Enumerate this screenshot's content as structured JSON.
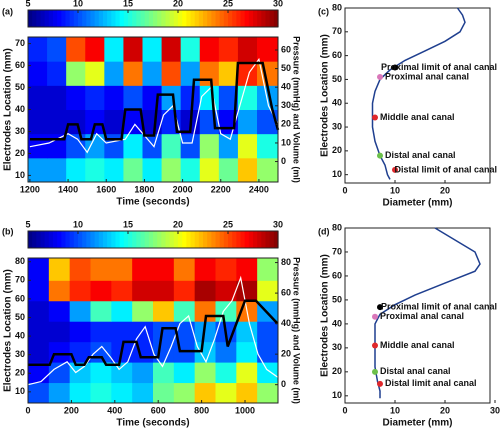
{
  "chart_data": [
    {
      "type": "heatmap",
      "panel_label": "(a)",
      "xlabel": "Time (seconds)",
      "ylabel": "Electrodes Location (mm)",
      "y2label": "Pressure (mmHg) and Volume (ml)",
      "xlim": [
        1190,
        2500
      ],
      "xticks": [
        1200,
        1400,
        1600,
        1800,
        2000,
        2200,
        2400
      ],
      "ylim": [
        7,
        73
      ],
      "yticks": [
        10,
        20,
        30,
        40,
        50,
        60,
        70
      ],
      "y2lim": [
        -11,
        67
      ],
      "y2ticks": [
        0,
        10,
        20,
        30,
        40,
        50,
        60
      ],
      "clim": [
        5,
        30
      ],
      "cticks": [
        5,
        10,
        15,
        20,
        25,
        30
      ],
      "xbins": [
        1190,
        1290,
        1390,
        1490,
        1590,
        1690,
        1790,
        1890,
        1990,
        2090,
        2190,
        2290,
        2390,
        2500
      ],
      "ybins": [
        7,
        18,
        29,
        40,
        51,
        62,
        73
      ],
      "z": [
        [
          12,
          12,
          14,
          15,
          14,
          17,
          14,
          18,
          15,
          20,
          17,
          22,
          18
        ],
        [
          8,
          8,
          10,
          12,
          10,
          14,
          10,
          16,
          10,
          18,
          12,
          20,
          15
        ],
        [
          7,
          7,
          7,
          8,
          7,
          8,
          7,
          9,
          7,
          10,
          8,
          12,
          10
        ],
        [
          7,
          7,
          8,
          9,
          8,
          10,
          8,
          12,
          9,
          14,
          10,
          15,
          12
        ],
        [
          8,
          9,
          18,
          20,
          12,
          24,
          12,
          25,
          12,
          24,
          22,
          26,
          24
        ],
        [
          9,
          10,
          25,
          27,
          14,
          28,
          14,
          28,
          15,
          27,
          26,
          28,
          27
        ]
      ],
      "series": [
        {
          "color": "#ffffff",
          "axis": "y2",
          "x": [
            1200,
            1300,
            1400,
            1450,
            1500,
            1550,
            1600,
            1700,
            1750,
            1800,
            1850,
            1900,
            1950,
            2000,
            2050,
            2100,
            2150,
            2200,
            2250,
            2300,
            2350,
            2400,
            2450,
            2500
          ],
          "values": [
            8,
            10,
            15,
            12,
            5,
            15,
            10,
            12,
            20,
            14,
            8,
            25,
            30,
            10,
            10,
            35,
            40,
            15,
            12,
            30,
            48,
            55,
            30,
            20
          ]
        },
        {
          "color": "#000000",
          "axis": "y2",
          "x": [
            1200,
            1380,
            1400,
            1450,
            1470,
            1520,
            1540,
            1580,
            1600,
            1680,
            1700,
            1780,
            1800,
            1850,
            1870,
            1950,
            1970,
            2040,
            2060,
            2150,
            2170,
            2270,
            2290,
            2420,
            2470,
            2500
          ],
          "values": [
            12,
            12,
            20,
            20,
            12,
            12,
            20,
            20,
            12,
            12,
            28,
            28,
            14,
            14,
            36,
            36,
            16,
            16,
            44,
            44,
            18,
            18,
            53,
            53,
            28,
            17
          ]
        }
      ]
    },
    {
      "type": "heatmap",
      "panel_label": "(b)",
      "xlabel": "Time (seconds)",
      "ylabel": "Electrodes Location (mm)",
      "y2label": "Pressure (mmHg) and Volume (ml)",
      "xlim": [
        0,
        1152
      ],
      "xticks": [
        0,
        200,
        400,
        600,
        800,
        1000
      ],
      "ylim": [
        4,
        82
      ],
      "yticks": [
        10,
        20,
        30,
        40,
        50,
        60,
        70,
        80
      ],
      "y2lim": [
        -12,
        83
      ],
      "y2ticks": [
        0,
        20,
        40,
        60,
        80
      ],
      "clim": [
        5,
        30
      ],
      "cticks": [
        5,
        10,
        15,
        20,
        25,
        30
      ],
      "xbins": [
        0,
        96,
        192,
        288,
        384,
        480,
        576,
        672,
        768,
        864,
        960,
        1056,
        1152
      ],
      "ybins": [
        4,
        15,
        26,
        37,
        48,
        59,
        70,
        82
      ],
      "z": [
        [
          10,
          12,
          14,
          15,
          14,
          13,
          17,
          18,
          22,
          20,
          22,
          18
        ],
        [
          8,
          10,
          13,
          14,
          13,
          12,
          16,
          14,
          18,
          15,
          20,
          14
        ],
        [
          7,
          8,
          9,
          10,
          9,
          9,
          10,
          10,
          13,
          11,
          14,
          10
        ],
        [
          7,
          7,
          8,
          9,
          9,
          9,
          10,
          10,
          12,
          10,
          13,
          10
        ],
        [
          7,
          8,
          12,
          16,
          14,
          18,
          22,
          16,
          24,
          16,
          24,
          12
        ],
        [
          8,
          24,
          26,
          27,
          26,
          28,
          28,
          26,
          29,
          28,
          29,
          20
        ],
        [
          8,
          22,
          25,
          24,
          24,
          27,
          27,
          24,
          27,
          26,
          27,
          18
        ]
      ],
      "series": [
        {
          "color": "#ffffff",
          "axis": "y2",
          "x": [
            0,
            60,
            120,
            180,
            220,
            260,
            300,
            340,
            380,
            420,
            460,
            500,
            540,
            580,
            620,
            660,
            700,
            740,
            780,
            820,
            860,
            900,
            940,
            980,
            1020,
            1060,
            1100,
            1150
          ],
          "values": [
            0,
            2,
            10,
            15,
            8,
            12,
            20,
            25,
            18,
            10,
            15,
            30,
            38,
            20,
            12,
            25,
            40,
            45,
            25,
            15,
            30,
            48,
            55,
            70,
            40,
            20,
            10,
            5
          ]
        },
        {
          "color": "#000000",
          "axis": "y2",
          "x": [
            0,
            100,
            120,
            200,
            220,
            260,
            280,
            340,
            360,
            420,
            440,
            500,
            520,
            600,
            620,
            680,
            700,
            800,
            820,
            900,
            920,
            1000,
            1050,
            1150
          ],
          "values": [
            13,
            13,
            20,
            20,
            13,
            13,
            18,
            18,
            13,
            13,
            28,
            28,
            18,
            18,
            37,
            37,
            22,
            22,
            45,
            45,
            25,
            55,
            55,
            40
          ]
        }
      ]
    },
    {
      "type": "line",
      "panel_label": "(c)",
      "xlabel": "Diameter (mm)",
      "ylabel": "Electrodes Location (mm)",
      "xlim": [
        0,
        29
      ],
      "xticks": [
        0,
        10,
        20
      ],
      "ylim": [
        6.5,
        80
      ],
      "yticks": [
        10,
        20,
        30,
        40,
        50,
        60,
        70,
        80
      ],
      "series": [
        {
          "color": "#1f3f8f",
          "x": [
            22.5,
            23.5,
            24,
            23,
            20,
            16,
            12,
            9,
            7,
            6,
            5.5,
            5.5,
            6,
            7,
            8,
            8.5,
            9
          ],
          "values": [
            80,
            77,
            74,
            70,
            66,
            62,
            58,
            54,
            50,
            45,
            40,
            30,
            24,
            18,
            14,
            10,
            8
          ]
        }
      ],
      "annotations": [
        {
          "text": "Proximal limit of anal canal",
          "x": 10,
          "y": 55,
          "color": "#000000"
        },
        {
          "text": "Proximal anal canal",
          "x": 7,
          "y": 51,
          "color": "#d977b9"
        },
        {
          "text": "Middle anal canal",
          "x": 6,
          "y": 34,
          "color": "#e0282c"
        },
        {
          "text": "Distal anal canal",
          "x": 7,
          "y": 18,
          "color": "#6cc04a"
        },
        {
          "text": "Distal limit of anal canal",
          "x": 10,
          "y": 12,
          "color": "#e0282c"
        }
      ]
    },
    {
      "type": "line",
      "panel_label": "(d)",
      "xlabel": "Diameter (mm)",
      "ylabel": "Electrodes Location (mm)",
      "xlim": [
        0,
        29
      ],
      "xticks": [
        0,
        10,
        20,
        30
      ],
      "ylim": [
        7,
        80
      ],
      "yticks": [
        10,
        20,
        30,
        40,
        50,
        60,
        70,
        80
      ],
      "series": [
        {
          "color": "#1f3f8f",
          "x": [
            18,
            22,
            26,
            27,
            26,
            20,
            14,
            10,
            7,
            6,
            6,
            6,
            6.5,
            7,
            7
          ],
          "values": [
            80,
            75,
            70,
            65,
            62,
            57,
            52,
            48,
            44,
            40,
            30,
            22,
            16,
            12,
            9
          ]
        }
      ],
      "annotations": [
        {
          "text": "Proximal limit of anal canal",
          "x": 7,
          "y": 47,
          "color": "#000000"
        },
        {
          "text": "Proximal anal canal",
          "x": 6,
          "y": 43,
          "color": "#d977b9"
        },
        {
          "text": "Middle anal canal",
          "x": 6,
          "y": 31,
          "color": "#e0282c"
        },
        {
          "text": "Distal anal canal",
          "x": 6,
          "y": 20,
          "color": "#6cc04a"
        },
        {
          "text": "Distal limit anal canal",
          "x": 7,
          "y": 15,
          "color": "#e0282c"
        }
      ]
    }
  ]
}
